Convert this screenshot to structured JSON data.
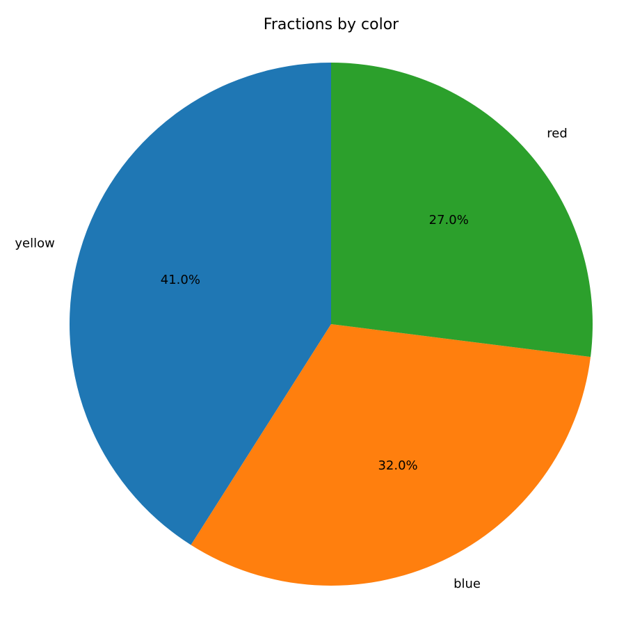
{
  "chart_data": {
    "type": "pie",
    "title": "Fractions by color",
    "start_angle_deg": 90,
    "direction": "counterclockwise",
    "autopct_format": "%.1f%%",
    "legend": "none",
    "slices": [
      {
        "label": "yellow",
        "value": 41.0,
        "color": "#1f77b4"
      },
      {
        "label": "blue",
        "value": 32.0,
        "color": "#ff7f0e"
      },
      {
        "label": "red",
        "value": 27.0,
        "color": "#2ca02c"
      }
    ]
  }
}
